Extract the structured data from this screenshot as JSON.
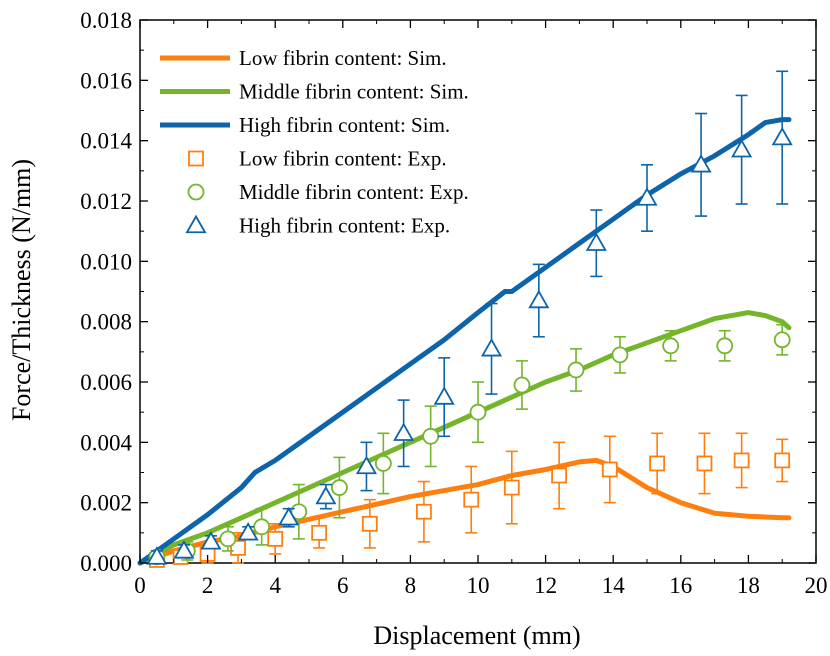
{
  "chart_data": {
    "type": "line",
    "xlabel": "Displacement (mm)",
    "ylabel": "Force/Thickness (N/mm)",
    "xlim": [
      0,
      20
    ],
    "ylim": [
      0,
      0.018
    ],
    "xticks": [
      0,
      2,
      4,
      6,
      8,
      10,
      12,
      14,
      16,
      18,
      20
    ],
    "yticks": [
      0.0,
      0.002,
      0.004,
      0.006,
      0.008,
      0.01,
      0.012,
      0.014,
      0.016,
      0.018
    ],
    "ytick_labels": [
      "0.000",
      "0.002",
      "0.004",
      "0.006",
      "0.008",
      "0.010",
      "0.012",
      "0.014",
      "0.016",
      "0.018"
    ],
    "legend_position": "top-left",
    "grid": false,
    "series": [
      {
        "name": "Low fibrin content: Sim.",
        "kind": "line",
        "color": "#ff7f0e",
        "x": [
          0,
          1,
          2,
          3,
          4,
          5,
          6,
          7,
          8,
          9,
          10,
          11,
          12,
          13,
          13.5,
          14,
          15,
          16,
          17,
          18,
          19,
          19.2
        ],
        "y": [
          0,
          0.0004,
          0.0007,
          0.0009,
          0.0012,
          0.00145,
          0.0017,
          0.00195,
          0.0022,
          0.0024,
          0.0026,
          0.0029,
          0.0031,
          0.00335,
          0.0034,
          0.0032,
          0.0025,
          0.002,
          0.00165,
          0.00155,
          0.0015,
          0.0015
        ]
      },
      {
        "name": "Middle fibrin content: Sim.",
        "kind": "line",
        "color": "#74b52c",
        "x": [
          0,
          1,
          2,
          3,
          4,
          5,
          6,
          7,
          8,
          9,
          10,
          11,
          12,
          13,
          14,
          15,
          16,
          17,
          18,
          18.5,
          19,
          19.2
        ],
        "y": [
          0,
          0.0006,
          0.001,
          0.0015,
          0.002,
          0.0025,
          0.003,
          0.0035,
          0.004,
          0.0045,
          0.005,
          0.0055,
          0.006,
          0.0064,
          0.0069,
          0.0073,
          0.0077,
          0.0081,
          0.0083,
          0.0082,
          0.008,
          0.0078
        ]
      },
      {
        "name": "High fibrin content: Sim.",
        "kind": "line",
        "color": "#0d64aa",
        "x": [
          0,
          1,
          2,
          3,
          3.4,
          4,
          5,
          6,
          7,
          8,
          9,
          10,
          10.8,
          11,
          12,
          13,
          14,
          15,
          16,
          17,
          18,
          18.5,
          19,
          19.2
        ],
        "y": [
          0,
          0.0008,
          0.0016,
          0.0025,
          0.003,
          0.0034,
          0.0042,
          0.005,
          0.0058,
          0.0066,
          0.0074,
          0.0083,
          0.009,
          0.009,
          0.0098,
          0.0106,
          0.0114,
          0.0122,
          0.0129,
          0.0135,
          0.0142,
          0.0146,
          0.0147,
          0.0147
        ]
      },
      {
        "name": "Low fibrin content: Exp.",
        "kind": "marker",
        "marker": "square",
        "color": "#ff7f0e",
        "x": [
          0.5,
          1.2,
          2.0,
          2.9,
          4.0,
          5.3,
          6.8,
          8.4,
          9.8,
          11.0,
          12.4,
          13.9,
          15.3,
          16.7,
          17.8,
          19.0
        ],
        "y": [
          0.0001,
          0.0002,
          0.0003,
          0.0005,
          0.0008,
          0.001,
          0.0013,
          0.0017,
          0.0021,
          0.0025,
          0.0029,
          0.0031,
          0.0033,
          0.0033,
          0.0034,
          0.0034
        ],
        "err": [
          0.0001,
          0.0002,
          0.0004,
          0.0005,
          0.0005,
          0.0005,
          0.0008,
          0.001,
          0.0011,
          0.0012,
          0.0011,
          0.0011,
          0.001,
          0.001,
          0.0009,
          0.0007
        ]
      },
      {
        "name": "Middle fibrin content: Exp.",
        "kind": "marker",
        "marker": "circle",
        "color": "#74b52c",
        "x": [
          0.5,
          1.4,
          2.6,
          3.6,
          4.7,
          5.9,
          7.2,
          8.6,
          10.0,
          11.3,
          12.9,
          14.2,
          15.7,
          17.3,
          19.0
        ],
        "y": [
          0.0002,
          0.0004,
          0.0008,
          0.0012,
          0.0017,
          0.0025,
          0.0033,
          0.0042,
          0.005,
          0.0059,
          0.0064,
          0.0069,
          0.0072,
          0.0072,
          0.0074
        ],
        "err": [
          0.0002,
          0.0003,
          0.0004,
          0.0006,
          0.0009,
          0.001,
          0.001,
          0.001,
          0.001,
          0.0008,
          0.0007,
          0.0006,
          0.0005,
          0.0005,
          0.0005
        ]
      },
      {
        "name": "High fibrin content: Exp.",
        "kind": "marker",
        "marker": "triangle",
        "color": "#0d64aa",
        "x": [
          0.5,
          1.3,
          2.1,
          3.2,
          4.4,
          5.5,
          6.7,
          7.8,
          9.0,
          10.4,
          11.8,
          13.5,
          15.0,
          16.6,
          17.8,
          19.0
        ],
        "y": [
          0.0002,
          0.0004,
          0.0007,
          0.001,
          0.0015,
          0.0022,
          0.0032,
          0.0043,
          0.0055,
          0.0071,
          0.0087,
          0.0106,
          0.0121,
          0.0132,
          0.0137,
          0.0141
        ],
        "err": [
          0.0002,
          0.0002,
          0.0002,
          0.0002,
          0.0003,
          0.0004,
          0.0008,
          0.0011,
          0.0013,
          0.0015,
          0.0012,
          0.0011,
          0.0011,
          0.0017,
          0.0018,
          0.0022
        ]
      }
    ]
  }
}
